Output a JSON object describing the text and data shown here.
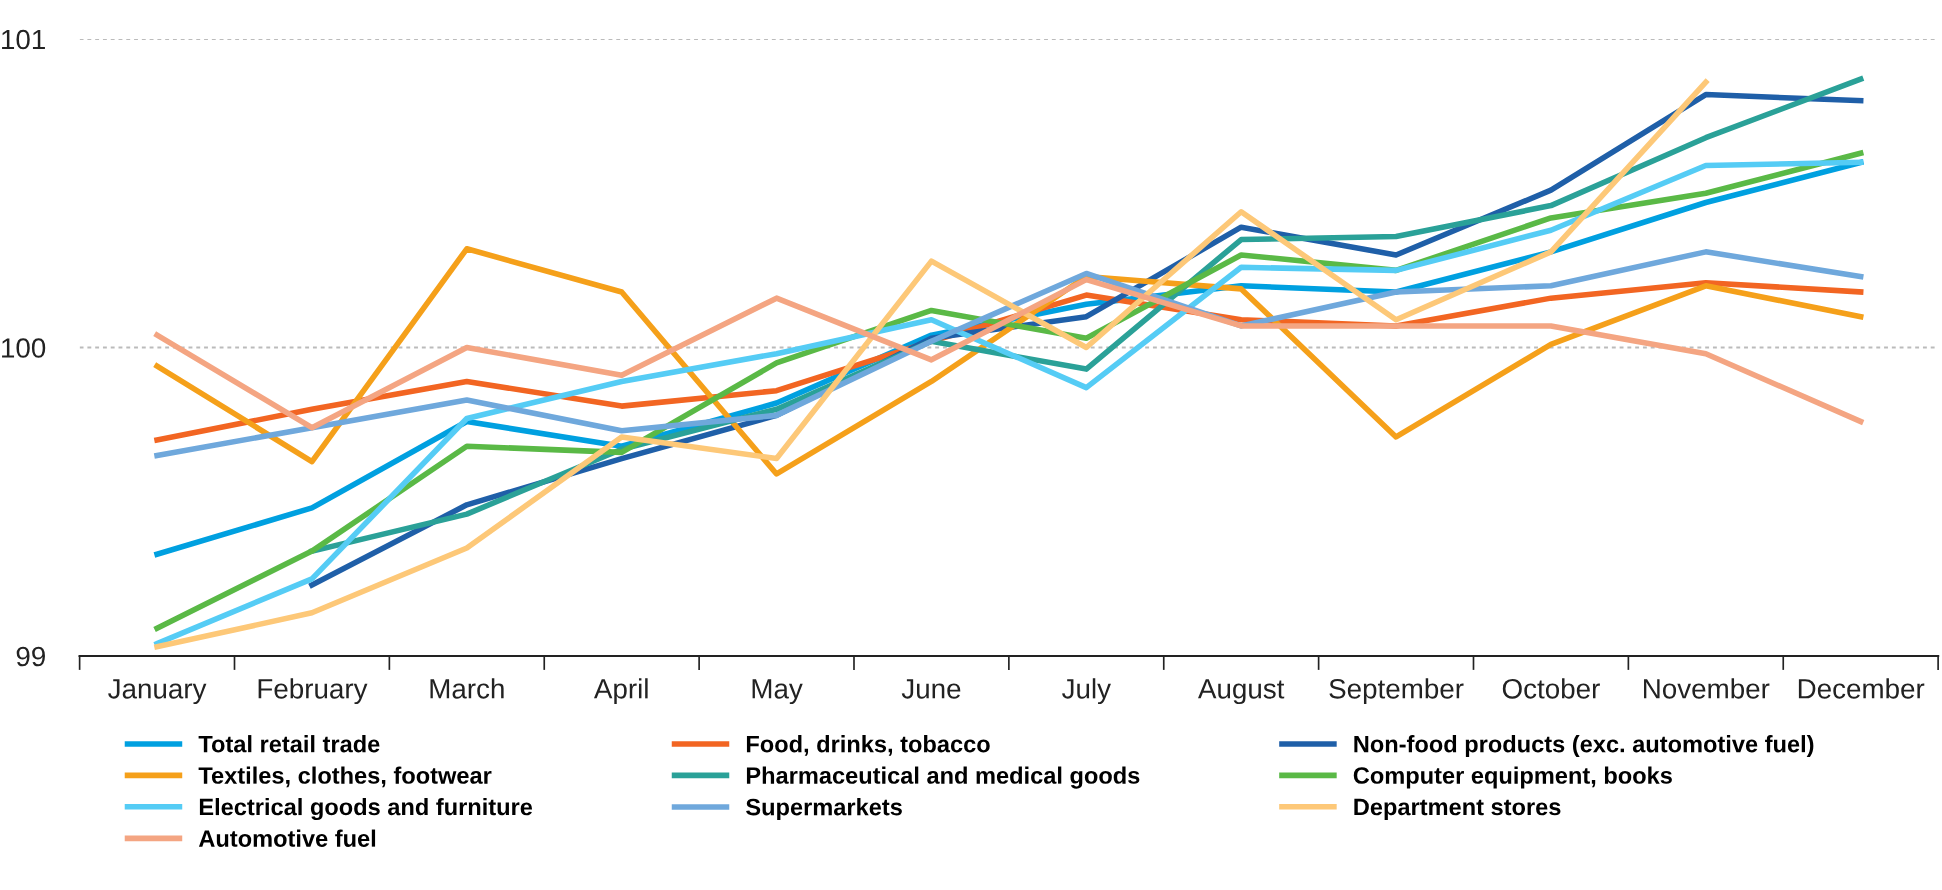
{
  "chart_data": {
    "type": "line",
    "categories": [
      "January",
      "February",
      "March",
      "April",
      "May",
      "June",
      "July",
      "August",
      "September",
      "October",
      "November",
      "December"
    ],
    "series": [
      {
        "name": "Total retail trade",
        "color": "#00a0e0",
        "values": [
          99.33,
          99.48,
          99.76,
          99.68,
          99.82,
          100.04,
          100.14,
          100.2,
          100.18,
          100.31,
          100.47,
          100.6
        ]
      },
      {
        "name": "Food, drinks, tobacco",
        "color": "#f26522",
        "values": [
          99.7,
          99.8,
          99.89,
          99.81,
          99.86,
          100.02,
          100.17,
          100.09,
          100.07,
          100.16,
          100.21,
          100.18
        ]
      },
      {
        "name": "Non-food products (exc. automotive fuel)",
        "color": "#1f5fa8",
        "values": [
          null,
          99.23,
          99.49,
          99.64,
          99.78,
          100.03,
          100.1,
          100.39,
          100.3,
          100.51,
          100.82,
          100.8
        ]
      },
      {
        "name": "Textiles, clothes, footwear",
        "color": "#f5a01a",
        "values": [
          99.94,
          99.63,
          100.32,
          100.18,
          99.59,
          99.89,
          100.23,
          100.19,
          99.71,
          100.01,
          100.2,
          100.1
        ]
      },
      {
        "name": "Pharmaceutical and medical goods",
        "color": "#2aa198",
        "values": [
          null,
          99.34,
          99.46,
          99.67,
          99.8,
          100.02,
          99.93,
          100.35,
          100.36,
          100.46,
          100.68,
          100.87
        ]
      },
      {
        "name": "Computer equipment, books",
        "color": "#5ab946",
        "values": [
          99.09,
          99.34,
          99.68,
          99.66,
          99.95,
          100.12,
          100.03,
          100.3,
          100.25,
          100.42,
          100.5,
          100.63
        ]
      },
      {
        "name": "Electrical goods and furniture",
        "color": "#55ccf5",
        "values": [
          99.04,
          99.25,
          99.77,
          99.89,
          99.98,
          100.09,
          99.87,
          100.26,
          100.25,
          100.38,
          100.59,
          100.6
        ]
      },
      {
        "name": "Supermarkets",
        "color": "#6fa8dc",
        "values": [
          99.65,
          99.74,
          99.83,
          99.73,
          99.78,
          100.02,
          100.24,
          100.07,
          100.18,
          100.2,
          100.31,
          100.23
        ]
      },
      {
        "name": "Department stores",
        "color": "#fdc878",
        "values": [
          99.03,
          99.14,
          99.35,
          99.71,
          99.64,
          100.28,
          100.0,
          100.44,
          100.09,
          100.31,
          100.86,
          null
        ]
      },
      {
        "name": "Automotive fuel",
        "color": "#f4a582",
        "values": [
          100.04,
          99.74,
          100.0,
          99.91,
          100.16,
          99.96,
          100.22,
          100.07,
          100.07,
          100.07,
          99.98,
          99.76
        ]
      }
    ],
    "ylim": [
      99,
      101
    ],
    "yticks": [
      99,
      100,
      101
    ],
    "grid": "y",
    "legend": "bottom",
    "line_style": "solid",
    "marker": "none"
  }
}
